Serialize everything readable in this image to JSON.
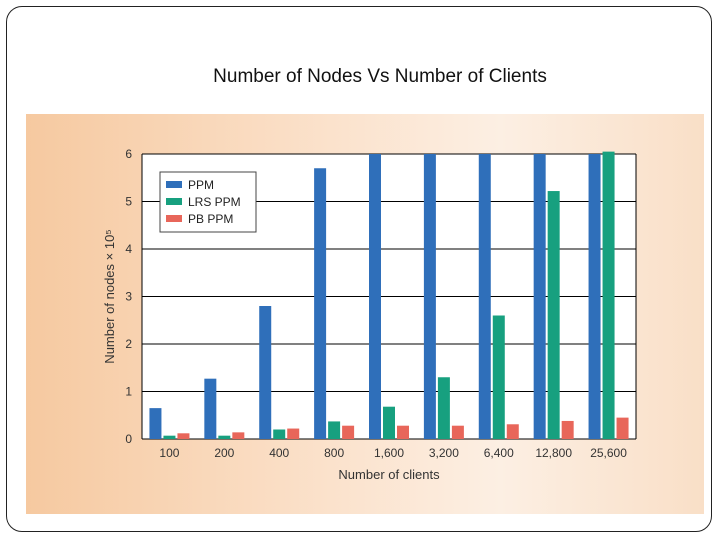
{
  "slide": {
    "title": "Number of Nodes Vs Number of Clients"
  },
  "chart_data": {
    "type": "bar",
    "title": "",
    "xlabel": "Number of clients",
    "ylabel": "Number of nodes × 10⁵",
    "categories": [
      "100",
      "200",
      "400",
      "800",
      "1,600",
      "3,200",
      "6,400",
      "12,800",
      "25,600"
    ],
    "ylim": [
      0,
      6
    ],
    "yticks": [
      "0",
      "1",
      "2",
      "3",
      "4",
      "5",
      "6"
    ],
    "grid": true,
    "legend_position": "top-left",
    "series": [
      {
        "name": "PPM",
        "color": "#2f6fba",
        "values": [
          0.65,
          1.27,
          2.8,
          5.7,
          6,
          6,
          6,
          6,
          6
        ]
      },
      {
        "name": "LRS PPM",
        "color": "#17a07f",
        "values": [
          0.07,
          0.07,
          0.2,
          0.37,
          0.68,
          1.3,
          2.6,
          5.22,
          6.05
        ]
      },
      {
        "name": "PB PPM",
        "color": "#e8665a",
        "values": [
          0.12,
          0.14,
          0.22,
          0.28,
          0.28,
          0.28,
          0.31,
          0.38,
          0.45
        ]
      }
    ]
  }
}
